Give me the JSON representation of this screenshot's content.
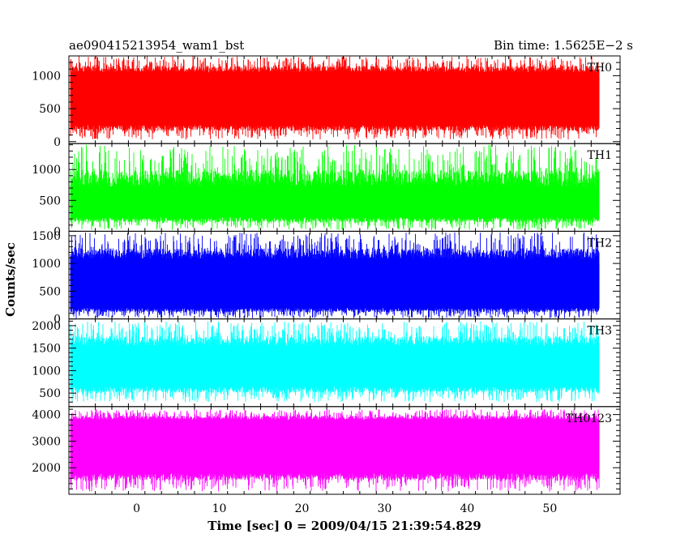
{
  "header": {
    "left_title": "ae090415213954_wam1_bst",
    "right_title": "Bin time: 1.5625E−2 s"
  },
  "chart_data": {
    "type": "line",
    "title": "ae090415213954_wam1_bst",
    "subtitle": "Bin time: 1.5625E−2 s",
    "xlabel": "Time [sec] 0 = 2009/04/15 21:39:54.829",
    "ylabel": "Counts/sec",
    "xlim": [
      -8.2,
      58.5
    ],
    "x_data_range": [
      -8,
      56
    ],
    "x_ticks": [
      0,
      10,
      20,
      30,
      40,
      50
    ],
    "grid": false,
    "panels": [
      {
        "name": "TH0",
        "color": "#ff0000",
        "ylim": [
          -30,
          1300
        ],
        "y_ticks": [
          0,
          500,
          1000
        ],
        "baseline": 640,
        "band_low": 250,
        "band_high": 1050,
        "spike_max": 1300,
        "spike_min": 30
      },
      {
        "name": "TH1",
        "color": "#00ff00",
        "ylim": [
          0,
          1420
        ],
        "y_ticks": [
          0,
          500,
          1000
        ],
        "baseline": 470,
        "band_low": 230,
        "band_high": 720,
        "spike_max": 1400,
        "spike_min": 20
      },
      {
        "name": "TH2",
        "color": "#0000ff",
        "ylim": [
          0,
          1580
        ],
        "y_ticks": [
          0,
          500,
          1000,
          1500
        ],
        "baseline": 640,
        "band_low": 200,
        "band_high": 1080,
        "spike_max": 1560,
        "spike_min": 10
      },
      {
        "name": "TH3",
        "color": "#00ffff",
        "ylim": [
          200,
          2150
        ],
        "y_ticks": [
          500,
          1000,
          1500,
          2000
        ],
        "baseline": 1070,
        "band_low": 650,
        "band_high": 1550,
        "spike_max": 2100,
        "spike_min": 300
      },
      {
        "name": "TH0123",
        "color": "#ff00ff",
        "ylim": [
          1000,
          4300
        ],
        "y_ticks": [
          2000,
          3000,
          4000
        ],
        "baseline": 2700,
        "band_low": 1800,
        "band_high": 3800,
        "spike_max": 4200,
        "spike_min": 1100
      }
    ]
  }
}
